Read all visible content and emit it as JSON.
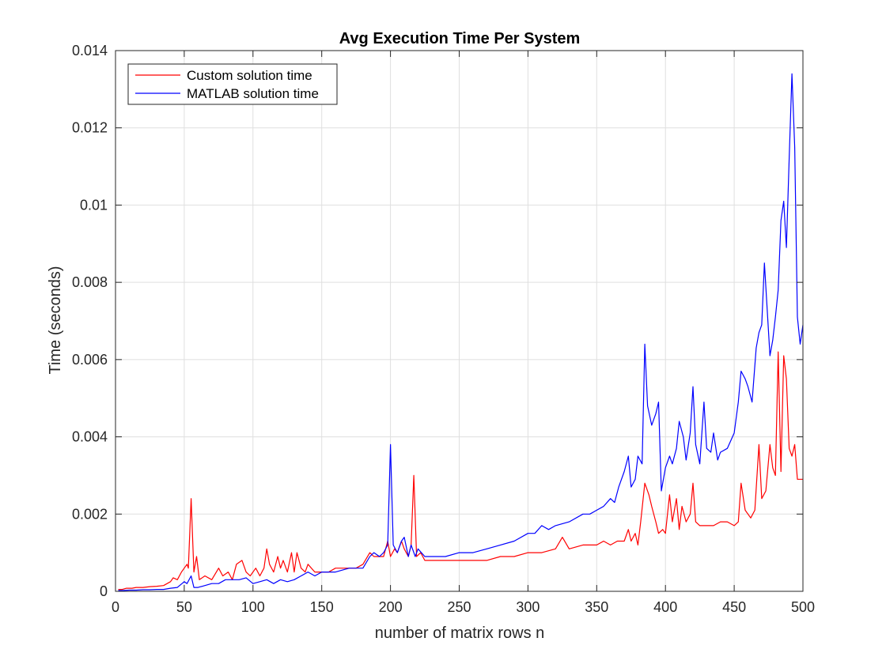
{
  "chart_data": {
    "type": "line",
    "title": "Avg Execution Time Per System",
    "xlabel": "number of matrix rows n",
    "ylabel": "Time (seconds)",
    "xlim": [
      0,
      500
    ],
    "ylim": [
      0,
      0.014
    ],
    "xticks": [
      0,
      50,
      100,
      150,
      200,
      250,
      300,
      350,
      400,
      450,
      500
    ],
    "yticks": [
      0,
      0.002,
      0.004,
      0.006,
      0.008,
      0.01,
      0.012,
      0.014
    ],
    "xtick_labels": [
      "0",
      "50",
      "100",
      "150",
      "200",
      "250",
      "300",
      "350",
      "400",
      "450",
      "500"
    ],
    "ytick_labels": [
      "0",
      "0.002",
      "0.004",
      "0.006",
      "0.008",
      "0.01",
      "0.012",
      "0.014"
    ],
    "grid": true,
    "legend_position": "top-left",
    "series": [
      {
        "name": "Custom solution time",
        "color": "#ff0000",
        "points": [
          [
            2,
            5e-05
          ],
          [
            5,
            5e-05
          ],
          [
            8,
            8e-05
          ],
          [
            12,
            8e-05
          ],
          [
            15,
            0.0001
          ],
          [
            20,
            0.0001
          ],
          [
            25,
            0.00012
          ],
          [
            30,
            0.00013
          ],
          [
            35,
            0.00015
          ],
          [
            40,
            0.00025
          ],
          [
            42,
            0.00035
          ],
          [
            45,
            0.0003
          ],
          [
            48,
            0.0005
          ],
          [
            50,
            0.0006
          ],
          [
            52,
            0.0007
          ],
          [
            53,
            0.0006
          ],
          [
            55,
            0.0024
          ],
          [
            57,
            0.0005
          ],
          [
            59,
            0.0009
          ],
          [
            61,
            0.0003
          ],
          [
            65,
            0.0004
          ],
          [
            70,
            0.0003
          ],
          [
            75,
            0.0006
          ],
          [
            78,
            0.0004
          ],
          [
            82,
            0.0005
          ],
          [
            85,
            0.0003
          ],
          [
            88,
            0.0007
          ],
          [
            92,
            0.0008
          ],
          [
            95,
            0.0005
          ],
          [
            98,
            0.0004
          ],
          [
            102,
            0.0006
          ],
          [
            105,
            0.0004
          ],
          [
            108,
            0.0006
          ],
          [
            110,
            0.0011
          ],
          [
            112,
            0.0007
          ],
          [
            115,
            0.0005
          ],
          [
            118,
            0.0009
          ],
          [
            120,
            0.0006
          ],
          [
            122,
            0.0008
          ],
          [
            125,
            0.0005
          ],
          [
            128,
            0.001
          ],
          [
            130,
            0.0005
          ],
          [
            132,
            0.001
          ],
          [
            135,
            0.0006
          ],
          [
            138,
            0.0005
          ],
          [
            140,
            0.0007
          ],
          [
            145,
            0.0005
          ],
          [
            150,
            0.0005
          ],
          [
            155,
            0.0005
          ],
          [
            160,
            0.0006
          ],
          [
            165,
            0.0006
          ],
          [
            170,
            0.0006
          ],
          [
            175,
            0.0006
          ],
          [
            180,
            0.0007
          ],
          [
            185,
            0.001
          ],
          [
            188,
            0.0009
          ],
          [
            192,
            0.0009
          ],
          [
            195,
            0.0009
          ],
          [
            198,
            0.0013
          ],
          [
            200,
            0.0009
          ],
          [
            203,
            0.0011
          ],
          [
            205,
            0.001
          ],
          [
            208,
            0.0013
          ],
          [
            210,
            0.0011
          ],
          [
            213,
            0.0009
          ],
          [
            215,
            0.0012
          ],
          [
            217,
            0.003
          ],
          [
            219,
            0.0009
          ],
          [
            222,
            0.001
          ],
          [
            225,
            0.0008
          ],
          [
            230,
            0.0008
          ],
          [
            240,
            0.0008
          ],
          [
            250,
            0.0008
          ],
          [
            260,
            0.0008
          ],
          [
            270,
            0.0008
          ],
          [
            280,
            0.0009
          ],
          [
            290,
            0.0009
          ],
          [
            300,
            0.001
          ],
          [
            310,
            0.001
          ],
          [
            320,
            0.0011
          ],
          [
            325,
            0.0014
          ],
          [
            330,
            0.0011
          ],
          [
            340,
            0.0012
          ],
          [
            350,
            0.0012
          ],
          [
            355,
            0.0013
          ],
          [
            360,
            0.0012
          ],
          [
            365,
            0.0013
          ],
          [
            370,
            0.0013
          ],
          [
            373,
            0.0016
          ],
          [
            375,
            0.0013
          ],
          [
            378,
            0.0015
          ],
          [
            380,
            0.0012
          ],
          [
            382,
            0.0018
          ],
          [
            385,
            0.0028
          ],
          [
            388,
            0.0025
          ],
          [
            390,
            0.0022
          ],
          [
            393,
            0.0018
          ],
          [
            395,
            0.0015
          ],
          [
            398,
            0.0016
          ],
          [
            400,
            0.0015
          ],
          [
            403,
            0.0025
          ],
          [
            405,
            0.0018
          ],
          [
            408,
            0.0024
          ],
          [
            410,
            0.0016
          ],
          [
            412,
            0.0022
          ],
          [
            415,
            0.0018
          ],
          [
            418,
            0.002
          ],
          [
            420,
            0.0028
          ],
          [
            422,
            0.0018
          ],
          [
            425,
            0.0017
          ],
          [
            430,
            0.0017
          ],
          [
            435,
            0.0017
          ],
          [
            440,
            0.0018
          ],
          [
            445,
            0.0018
          ],
          [
            450,
            0.0017
          ],
          [
            453,
            0.0018
          ],
          [
            455,
            0.0028
          ],
          [
            458,
            0.0021
          ],
          [
            462,
            0.0019
          ],
          [
            465,
            0.0021
          ],
          [
            468,
            0.0038
          ],
          [
            470,
            0.0024
          ],
          [
            473,
            0.0026
          ],
          [
            476,
            0.0038
          ],
          [
            478,
            0.0032
          ],
          [
            480,
            0.003
          ],
          [
            482,
            0.0062
          ],
          [
            484,
            0.0031
          ],
          [
            486,
            0.0061
          ],
          [
            488,
            0.0055
          ],
          [
            490,
            0.0037
          ],
          [
            492,
            0.0035
          ],
          [
            494,
            0.0038
          ],
          [
            496,
            0.0029
          ],
          [
            500,
            0.0029
          ]
        ]
      },
      {
        "name": "MATLAB solution time",
        "color": "#0000ff",
        "points": [
          [
            2,
            2e-05
          ],
          [
            5,
            2e-05
          ],
          [
            10,
            3e-05
          ],
          [
            15,
            3e-05
          ],
          [
            20,
            4e-05
          ],
          [
            25,
            4e-05
          ],
          [
            30,
            5e-05
          ],
          [
            35,
            5e-05
          ],
          [
            40,
            8e-05
          ],
          [
            45,
            0.0001
          ],
          [
            50,
            0.00025
          ],
          [
            52,
            0.0002
          ],
          [
            55,
            0.0004
          ],
          [
            57,
            0.0001
          ],
          [
            60,
            0.0001
          ],
          [
            65,
            0.00015
          ],
          [
            70,
            0.0002
          ],
          [
            75,
            0.0002
          ],
          [
            80,
            0.0003
          ],
          [
            85,
            0.0003
          ],
          [
            90,
            0.0003
          ],
          [
            95,
            0.00035
          ],
          [
            100,
            0.0002
          ],
          [
            105,
            0.00025
          ],
          [
            110,
            0.0003
          ],
          [
            115,
            0.0002
          ],
          [
            120,
            0.0003
          ],
          [
            125,
            0.00025
          ],
          [
            130,
            0.0003
          ],
          [
            135,
            0.0004
          ],
          [
            140,
            0.0005
          ],
          [
            145,
            0.0004
          ],
          [
            150,
            0.0005
          ],
          [
            160,
            0.0005
          ],
          [
            170,
            0.0006
          ],
          [
            180,
            0.0006
          ],
          [
            185,
            0.0009
          ],
          [
            188,
            0.001
          ],
          [
            192,
            0.0009
          ],
          [
            195,
            0.001
          ],
          [
            198,
            0.0012
          ],
          [
            200,
            0.0038
          ],
          [
            202,
            0.0012
          ],
          [
            205,
            0.001
          ],
          [
            208,
            0.0013
          ],
          [
            210,
            0.0014
          ],
          [
            213,
            0.0009
          ],
          [
            215,
            0.0012
          ],
          [
            218,
            0.0009
          ],
          [
            220,
            0.0011
          ],
          [
            225,
            0.0009
          ],
          [
            230,
            0.0009
          ],
          [
            240,
            0.0009
          ],
          [
            250,
            0.001
          ],
          [
            260,
            0.001
          ],
          [
            270,
            0.0011
          ],
          [
            280,
            0.0012
          ],
          [
            290,
            0.0013
          ],
          [
            300,
            0.0015
          ],
          [
            305,
            0.0015
          ],
          [
            310,
            0.0017
          ],
          [
            315,
            0.0016
          ],
          [
            320,
            0.0017
          ],
          [
            330,
            0.0018
          ],
          [
            340,
            0.002
          ],
          [
            345,
            0.002
          ],
          [
            350,
            0.0021
          ],
          [
            355,
            0.0022
          ],
          [
            360,
            0.0024
          ],
          [
            363,
            0.0023
          ],
          [
            366,
            0.0027
          ],
          [
            370,
            0.0031
          ],
          [
            373,
            0.0035
          ],
          [
            375,
            0.0027
          ],
          [
            378,
            0.0029
          ],
          [
            380,
            0.0035
          ],
          [
            383,
            0.0033
          ],
          [
            385,
            0.0064
          ],
          [
            387,
            0.0048
          ],
          [
            390,
            0.0043
          ],
          [
            393,
            0.0046
          ],
          [
            395,
            0.0049
          ],
          [
            397,
            0.0026
          ],
          [
            400,
            0.0032
          ],
          [
            403,
            0.0035
          ],
          [
            405,
            0.0033
          ],
          [
            408,
            0.0037
          ],
          [
            410,
            0.0044
          ],
          [
            413,
            0.004
          ],
          [
            415,
            0.0034
          ],
          [
            418,
            0.0041
          ],
          [
            420,
            0.0053
          ],
          [
            422,
            0.0038
          ],
          [
            425,
            0.0033
          ],
          [
            428,
            0.0049
          ],
          [
            430,
            0.0037
          ],
          [
            433,
            0.0036
          ],
          [
            435,
            0.0041
          ],
          [
            438,
            0.0034
          ],
          [
            440,
            0.0036
          ],
          [
            445,
            0.0037
          ],
          [
            450,
            0.0041
          ],
          [
            453,
            0.0049
          ],
          [
            455,
            0.0057
          ],
          [
            458,
            0.0055
          ],
          [
            460,
            0.0053
          ],
          [
            463,
            0.0049
          ],
          [
            466,
            0.0063
          ],
          [
            468,
            0.0067
          ],
          [
            470,
            0.0069
          ],
          [
            472,
            0.0085
          ],
          [
            474,
            0.0073
          ],
          [
            476,
            0.0061
          ],
          [
            478,
            0.0065
          ],
          [
            480,
            0.0071
          ],
          [
            482,
            0.0078
          ],
          [
            484,
            0.0096
          ],
          [
            486,
            0.0101
          ],
          [
            488,
            0.0089
          ],
          [
            490,
            0.0112
          ],
          [
            492,
            0.0134
          ],
          [
            494,
            0.0115
          ],
          [
            496,
            0.0071
          ],
          [
            498,
            0.0064
          ],
          [
            500,
            0.0069
          ]
        ]
      }
    ]
  }
}
